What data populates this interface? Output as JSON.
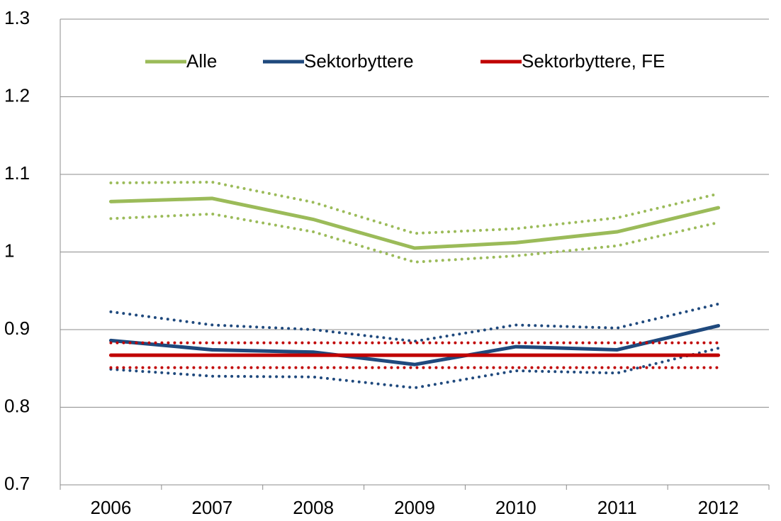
{
  "chart_data": {
    "type": "line",
    "categories": [
      "2006",
      "2007",
      "2008",
      "2009",
      "2010",
      "2011",
      "2012"
    ],
    "ylim": [
      0.7,
      1.3
    ],
    "yticks": [
      0.7,
      0.8,
      0.9,
      1,
      1.1,
      1.2,
      1.3
    ],
    "grid": true,
    "legend": "top",
    "series": [
      {
        "name": "Alle",
        "color": "#9bbb59",
        "style": "solid",
        "values": [
          1.065,
          1.069,
          1.042,
          1.005,
          1.012,
          1.026,
          1.057
        ]
      },
      {
        "color": "#9bbb59",
        "style": "dotted",
        "values": [
          1.089,
          1.09,
          1.064,
          1.024,
          1.03,
          1.044,
          1.075
        ]
      },
      {
        "color": "#9bbb59",
        "style": "dotted",
        "values": [
          1.043,
          1.049,
          1.026,
          0.987,
          0.995,
          1.008,
          1.038
        ]
      },
      {
        "name": "Sektorbyttere",
        "color": "#1f497d",
        "style": "solid",
        "values": [
          0.886,
          0.874,
          0.871,
          0.855,
          0.878,
          0.874,
          0.905
        ]
      },
      {
        "color": "#1f497d",
        "style": "dotted",
        "values": [
          0.923,
          0.906,
          0.9,
          0.885,
          0.906,
          0.902,
          0.933
        ]
      },
      {
        "color": "#1f497d",
        "style": "dotted",
        "values": [
          0.849,
          0.84,
          0.839,
          0.825,
          0.847,
          0.844,
          0.876
        ]
      },
      {
        "name": "Sektorbyttere, FE",
        "color": "#c00000",
        "style": "solid",
        "values": [
          0.867,
          0.867,
          0.867,
          0.867,
          0.867,
          0.867,
          0.867
        ]
      },
      {
        "color": "#c00000",
        "style": "dotted",
        "values": [
          0.883,
          0.883,
          0.883,
          0.883,
          0.883,
          0.883,
          0.883
        ]
      },
      {
        "color": "#c00000",
        "style": "dotted",
        "values": [
          0.851,
          0.851,
          0.851,
          0.851,
          0.851,
          0.851,
          0.851
        ]
      }
    ]
  }
}
